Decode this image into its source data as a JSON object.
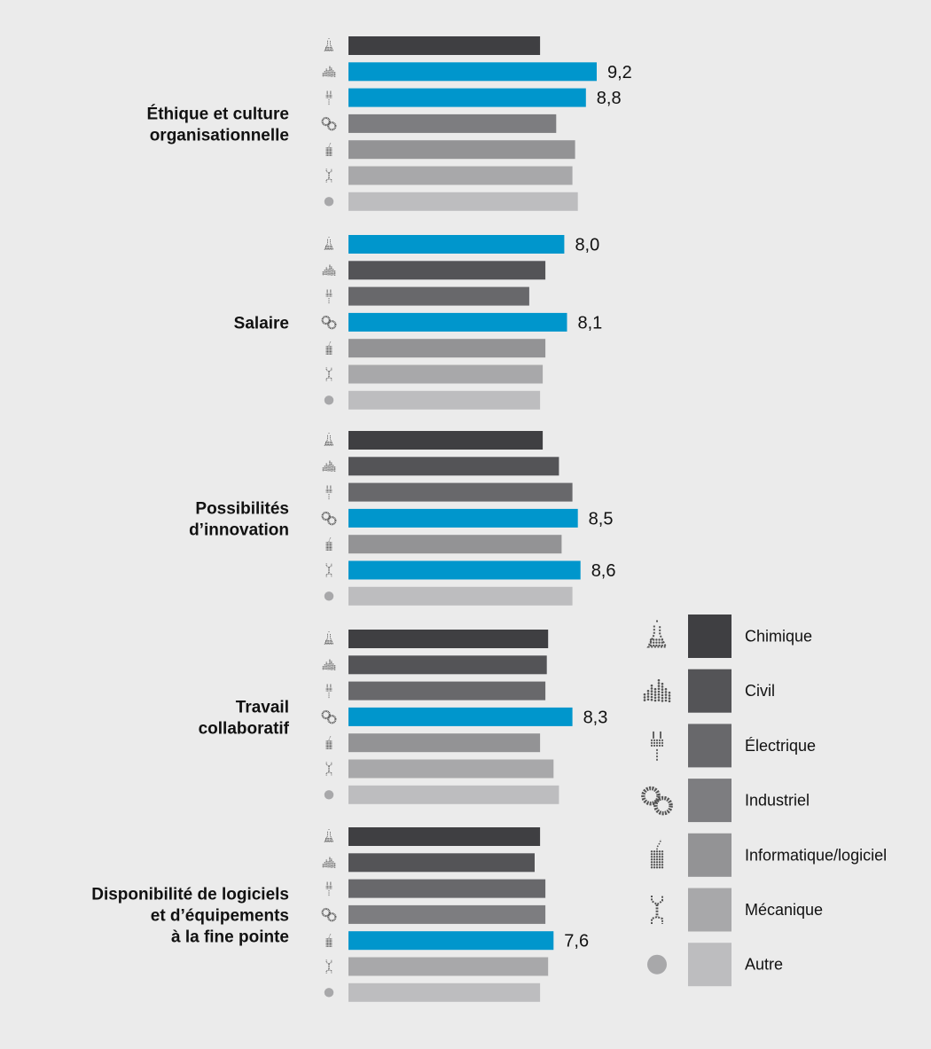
{
  "chart_data": {
    "type": "bar",
    "orientation": "horizontal",
    "categories": [
      [
        "Éthique et culture",
        "organisationnelle"
      ],
      [
        "Salaire"
      ],
      [
        "Possibilités",
        "d’innovation"
      ],
      [
        "Travail",
        "collaboratif"
      ],
      [
        "Disponibilité de logiciels",
        "et d’équipements",
        "à la fine pointe"
      ]
    ],
    "series": [
      {
        "name": "Chimique",
        "icon": "flask-icon",
        "color": "#3f3f42",
        "values": [
          7.1,
          8.0,
          7.2,
          7.4,
          7.1
        ]
      },
      {
        "name": "Civil",
        "icon": "city-icon",
        "color": "#545457",
        "values": [
          9.2,
          7.3,
          7.8,
          7.35,
          6.9
        ]
      },
      {
        "name": "Électrique",
        "icon": "plug-icon",
        "color": "#68686b",
        "values": [
          8.8,
          6.7,
          8.3,
          7.3,
          7.3
        ]
      },
      {
        "name": "Industriel",
        "icon": "chain-icon",
        "color": "#7d7d80",
        "values": [
          7.7,
          8.1,
          8.5,
          8.3,
          7.3
        ]
      },
      {
        "name": "Informatique/logiciel",
        "icon": "mouse-icon",
        "color": "#939395",
        "values": [
          8.4,
          7.3,
          7.9,
          7.1,
          7.6
        ]
      },
      {
        "name": "Mécanique",
        "icon": "wrench-icon",
        "color": "#a8a8aa",
        "values": [
          8.3,
          7.2,
          8.6,
          7.6,
          7.4
        ]
      },
      {
        "name": "Autre",
        "icon": "dot-icon",
        "color": "#bdbdbf",
        "values": [
          8.5,
          7.1,
          8.3,
          7.8,
          7.1
        ]
      }
    ],
    "highlight_color": "#0096cc",
    "highlights": [
      {
        "category": 0,
        "series": 1,
        "label": "9,2"
      },
      {
        "category": 0,
        "series": 2,
        "label": "8,8"
      },
      {
        "category": 1,
        "series": 0,
        "label": "8,0"
      },
      {
        "category": 1,
        "series": 3,
        "label": "8,1"
      },
      {
        "category": 2,
        "series": 3,
        "label": "8,5"
      },
      {
        "category": 2,
        "series": 5,
        "label": "8,6"
      },
      {
        "category": 3,
        "series": 3,
        "label": "8,3"
      },
      {
        "category": 4,
        "series": 4,
        "label": "7,6"
      }
    ],
    "legend_position": "right",
    "grid": false,
    "title": "",
    "xlabel": "",
    "ylabel": ""
  }
}
